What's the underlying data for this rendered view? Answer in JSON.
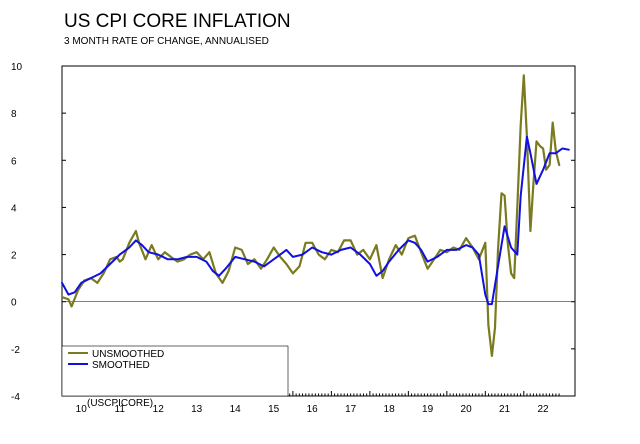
{
  "chart_data": {
    "type": "line",
    "title": "US CPI CORE INFLATION",
    "subtitle": "3 MONTH RATE OF CHANGE, ANNUALISED",
    "source_code": "(USCPICORE)",
    "ylim": [
      -4,
      10
    ],
    "yticks": [
      -4,
      -2,
      0,
      2,
      4,
      6,
      8,
      10
    ],
    "xlim": [
      2009.5,
      2022.83
    ],
    "xticks": [
      {
        "value": 2010.0,
        "label": "10"
      },
      {
        "value": 2011.0,
        "label": "11"
      },
      {
        "value": 2012.0,
        "label": "12"
      },
      {
        "value": 2013.0,
        "label": "13"
      },
      {
        "value": 2014.0,
        "label": "14"
      },
      {
        "value": 2015.0,
        "label": "15"
      },
      {
        "value": 2016.0,
        "label": "16"
      },
      {
        "value": 2017.0,
        "label": "17"
      },
      {
        "value": 2018.0,
        "label": "18"
      },
      {
        "value": 2019.0,
        "label": "19"
      },
      {
        "value": 2020.0,
        "label": "20"
      },
      {
        "value": 2021.0,
        "label": "21"
      },
      {
        "value": 2022.0,
        "label": "22"
      }
    ],
    "legend_position": "bottom-left",
    "grid": false,
    "series": [
      {
        "name": "UNSMOOTHED",
        "color": "#7a7a1e",
        "points": [
          [
            2009.5,
            0.2
          ],
          [
            2009.67,
            0.1
          ],
          [
            2009.75,
            -0.2
          ],
          [
            2009.92,
            0.5
          ],
          [
            2010.08,
            0.9
          ],
          [
            2010.25,
            1.0
          ],
          [
            2010.42,
            0.8
          ],
          [
            2010.58,
            1.2
          ],
          [
            2010.75,
            1.8
          ],
          [
            2010.92,
            1.9
          ],
          [
            2011.0,
            1.7
          ],
          [
            2011.08,
            1.8
          ],
          [
            2011.25,
            2.5
          ],
          [
            2011.42,
            3.0
          ],
          [
            2011.5,
            2.5
          ],
          [
            2011.67,
            1.8
          ],
          [
            2011.83,
            2.4
          ],
          [
            2012.0,
            1.8
          ],
          [
            2012.17,
            2.1
          ],
          [
            2012.33,
            1.9
          ],
          [
            2012.5,
            1.7
          ],
          [
            2012.67,
            1.8
          ],
          [
            2012.83,
            2.0
          ],
          [
            2013.0,
            2.1
          ],
          [
            2013.17,
            1.8
          ],
          [
            2013.33,
            2.1
          ],
          [
            2013.5,
            1.2
          ],
          [
            2013.67,
            0.8
          ],
          [
            2013.83,
            1.3
          ],
          [
            2014.0,
            2.3
          ],
          [
            2014.17,
            2.2
          ],
          [
            2014.33,
            1.6
          ],
          [
            2014.5,
            1.8
          ],
          [
            2014.67,
            1.4
          ],
          [
            2014.83,
            1.8
          ],
          [
            2015.0,
            2.3
          ],
          [
            2015.17,
            1.9
          ],
          [
            2015.33,
            1.6
          ],
          [
            2015.5,
            1.2
          ],
          [
            2015.67,
            1.5
          ],
          [
            2015.83,
            2.5
          ],
          [
            2016.0,
            2.5
          ],
          [
            2016.17,
            2.0
          ],
          [
            2016.33,
            1.8
          ],
          [
            2016.5,
            2.2
          ],
          [
            2016.67,
            2.1
          ],
          [
            2016.83,
            2.6
          ],
          [
            2017.0,
            2.6
          ],
          [
            2017.17,
            2.0
          ],
          [
            2017.33,
            2.2
          ],
          [
            2017.5,
            1.8
          ],
          [
            2017.67,
            2.4
          ],
          [
            2017.83,
            1.0
          ],
          [
            2018.0,
            1.8
          ],
          [
            2018.17,
            2.4
          ],
          [
            2018.33,
            2.0
          ],
          [
            2018.5,
            2.7
          ],
          [
            2018.67,
            2.8
          ],
          [
            2018.83,
            2.1
          ],
          [
            2019.0,
            1.4
          ],
          [
            2019.17,
            1.8
          ],
          [
            2019.33,
            2.2
          ],
          [
            2019.5,
            2.1
          ],
          [
            2019.67,
            2.3
          ],
          [
            2019.83,
            2.2
          ],
          [
            2020.0,
            2.7
          ],
          [
            2020.17,
            2.3
          ],
          [
            2020.33,
            1.8
          ],
          [
            2020.5,
            2.5
          ],
          [
            2020.58,
            -1.0
          ],
          [
            2020.67,
            -2.3
          ],
          [
            2020.75,
            -1.1
          ],
          [
            2020.83,
            2.2
          ],
          [
            2020.92,
            4.6
          ],
          [
            2021.0,
            4.5
          ],
          [
            2021.08,
            2.5
          ],
          [
            2021.17,
            1.2
          ],
          [
            2021.25,
            1.0
          ],
          [
            2021.33,
            4.0
          ],
          [
            2021.42,
            7.5
          ],
          [
            2021.5,
            9.6
          ],
          [
            2021.58,
            7.0
          ],
          [
            2021.67,
            3.0
          ],
          [
            2021.75,
            5.0
          ],
          [
            2021.83,
            6.8
          ],
          [
            2021.92,
            6.6
          ],
          [
            2022.0,
            6.5
          ],
          [
            2022.08,
            5.6
          ],
          [
            2022.17,
            5.8
          ],
          [
            2022.25,
            7.6
          ],
          [
            2022.33,
            6.4
          ],
          [
            2022.42,
            5.8
          ]
        ]
      },
      {
        "name": "SMOOTHED",
        "color": "#1010e0",
        "points": [
          [
            2009.5,
            0.8
          ],
          [
            2009.67,
            0.3
          ],
          [
            2009.83,
            0.4
          ],
          [
            2010.0,
            0.8
          ],
          [
            2010.25,
            1.0
          ],
          [
            2010.5,
            1.2
          ],
          [
            2010.75,
            1.6
          ],
          [
            2011.0,
            2.0
          ],
          [
            2011.25,
            2.3
          ],
          [
            2011.42,
            2.6
          ],
          [
            2011.58,
            2.4
          ],
          [
            2011.75,
            2.1
          ],
          [
            2012.0,
            2.0
          ],
          [
            2012.25,
            1.8
          ],
          [
            2012.5,
            1.8
          ],
          [
            2012.75,
            1.9
          ],
          [
            2013.0,
            1.9
          ],
          [
            2013.25,
            1.7
          ],
          [
            2013.42,
            1.3
          ],
          [
            2013.58,
            1.1
          ],
          [
            2013.75,
            1.4
          ],
          [
            2014.0,
            1.9
          ],
          [
            2014.25,
            1.8
          ],
          [
            2014.5,
            1.7
          ],
          [
            2014.75,
            1.5
          ],
          [
            2015.0,
            1.8
          ],
          [
            2015.17,
            2.0
          ],
          [
            2015.33,
            2.2
          ],
          [
            2015.5,
            1.9
          ],
          [
            2015.75,
            2.0
          ],
          [
            2016.0,
            2.3
          ],
          [
            2016.25,
            2.1
          ],
          [
            2016.5,
            2.0
          ],
          [
            2016.75,
            2.2
          ],
          [
            2017.0,
            2.3
          ],
          [
            2017.25,
            2.0
          ],
          [
            2017.5,
            1.6
          ],
          [
            2017.67,
            1.1
          ],
          [
            2017.83,
            1.3
          ],
          [
            2018.0,
            1.7
          ],
          [
            2018.25,
            2.2
          ],
          [
            2018.5,
            2.6
          ],
          [
            2018.67,
            2.5
          ],
          [
            2018.83,
            2.2
          ],
          [
            2019.0,
            1.7
          ],
          [
            2019.25,
            1.9
          ],
          [
            2019.5,
            2.2
          ],
          [
            2019.75,
            2.2
          ],
          [
            2020.0,
            2.4
          ],
          [
            2020.17,
            2.3
          ],
          [
            2020.33,
            2.0
          ],
          [
            2020.5,
            0.3
          ],
          [
            2020.58,
            -0.1
          ],
          [
            2020.67,
            -0.1
          ],
          [
            2020.83,
            1.5
          ],
          [
            2021.0,
            3.2
          ],
          [
            2021.17,
            2.3
          ],
          [
            2021.33,
            2.0
          ],
          [
            2021.42,
            4.5
          ],
          [
            2021.58,
            7.0
          ],
          [
            2021.67,
            6.3
          ],
          [
            2021.83,
            5.0
          ],
          [
            2022.0,
            5.6
          ],
          [
            2022.17,
            6.3
          ],
          [
            2022.33,
            6.3
          ],
          [
            2022.5,
            6.5
          ],
          [
            2022.67,
            6.45
          ]
        ]
      }
    ]
  }
}
